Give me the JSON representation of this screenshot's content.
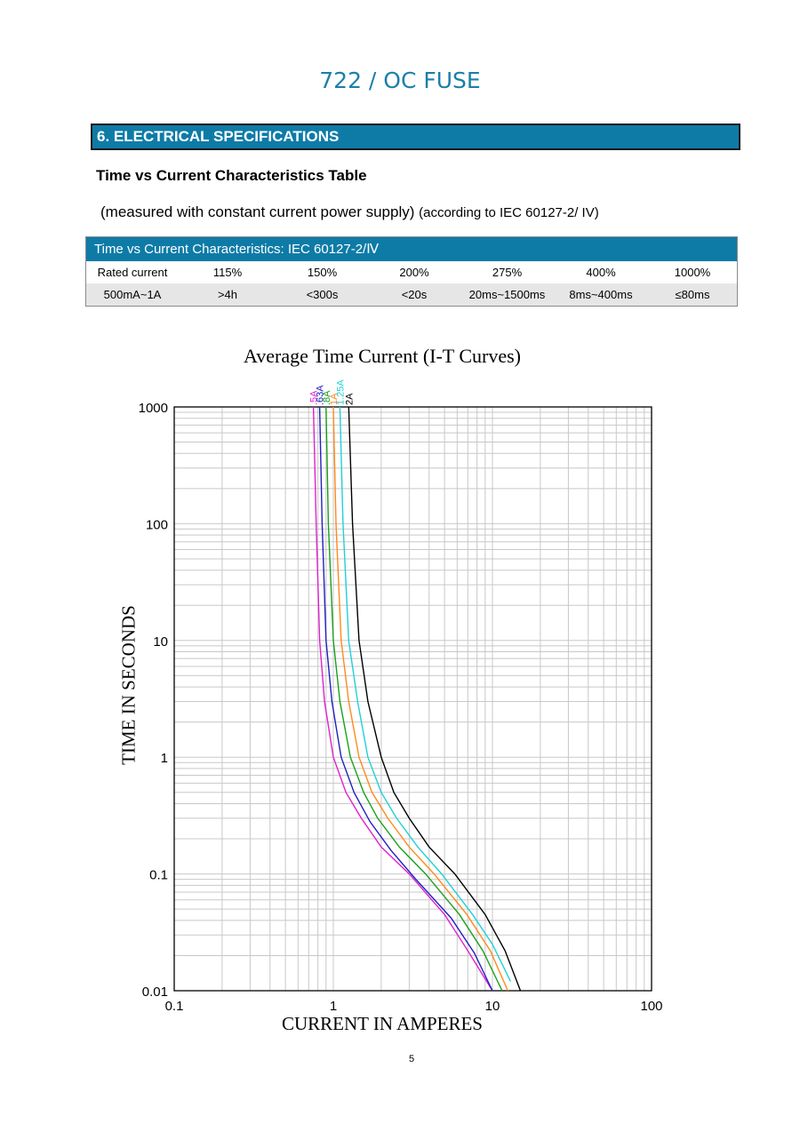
{
  "document": {
    "title": "722 / OC FUSE",
    "section_heading": "6. ELECTRICAL SPECIFICATIONS",
    "sub_heading": "Time vs Current Characteristics Table",
    "measure_note_main": "(measured with constant current power supply)",
    "measure_note_small": "(according to IEC 60127-2/ IV)",
    "page_number": "5"
  },
  "spec_table": {
    "header": "Time vs Current Characteristics: IEC 60127-2/Ⅳ",
    "rows": [
      [
        "Rated current",
        "115%",
        "150%",
        "200%",
        "275%",
        "400%",
        "1000%"
      ],
      [
        "500mA~1A",
        ">4h",
        "<300s",
        "<20s",
        "20ms~1500ms",
        "8ms~400ms",
        "≤80ms"
      ]
    ]
  },
  "chart_data": {
    "type": "line",
    "title": "Average Time Current (I-T Curves)",
    "xlabel": "CURRENT IN AMPERES",
    "ylabel": "TIME IN SECONDS",
    "xscale": "log",
    "yscale": "log",
    "xlim": [
      0.1,
      100
    ],
    "ylim": [
      0.01,
      1000
    ],
    "x_ticks": [
      "0.1",
      "1",
      "10",
      "100"
    ],
    "y_ticks": [
      "0.01",
      "0.1",
      "1",
      "10",
      "100",
      "1000"
    ],
    "grid": true,
    "legend": "curve labels at top of each curve",
    "series": [
      {
        "name": ".5A",
        "color": "#e020d0",
        "points": [
          [
            0.75,
            1000
          ],
          [
            0.78,
            100
          ],
          [
            0.82,
            10
          ],
          [
            0.88,
            3
          ],
          [
            1.0,
            1
          ],
          [
            1.2,
            0.5
          ],
          [
            1.5,
            0.3
          ],
          [
            2.0,
            0.17
          ],
          [
            3.0,
            0.1
          ],
          [
            5.0,
            0.045
          ],
          [
            7.0,
            0.022
          ],
          [
            10.0,
            0.01
          ]
        ]
      },
      {
        "name": ".63A",
        "color": "#2020c0",
        "points": [
          [
            0.82,
            1000
          ],
          [
            0.85,
            100
          ],
          [
            0.9,
            10
          ],
          [
            0.98,
            3
          ],
          [
            1.12,
            1
          ],
          [
            1.35,
            0.5
          ],
          [
            1.7,
            0.28
          ],
          [
            2.3,
            0.16
          ],
          [
            3.3,
            0.09
          ],
          [
            5.5,
            0.042
          ],
          [
            7.7,
            0.021
          ],
          [
            10.0,
            0.01
          ]
        ]
      },
      {
        "name": ".8A",
        "color": "#1aa01a",
        "points": [
          [
            0.9,
            1000
          ],
          [
            0.93,
            100
          ],
          [
            1.0,
            10
          ],
          [
            1.1,
            3
          ],
          [
            1.28,
            1
          ],
          [
            1.55,
            0.5
          ],
          [
            1.9,
            0.3
          ],
          [
            2.6,
            0.17
          ],
          [
            3.8,
            0.1
          ],
          [
            6.2,
            0.045
          ],
          [
            8.7,
            0.022
          ],
          [
            11.5,
            0.01
          ]
        ]
      },
      {
        "name": "1A",
        "color": "#ff8a1a",
        "points": [
          [
            1.0,
            1000
          ],
          [
            1.04,
            100
          ],
          [
            1.12,
            10
          ],
          [
            1.25,
            3
          ],
          [
            1.45,
            1
          ],
          [
            1.75,
            0.5
          ],
          [
            2.2,
            0.3
          ],
          [
            3.0,
            0.17
          ],
          [
            4.3,
            0.1
          ],
          [
            6.9,
            0.045
          ],
          [
            9.7,
            0.022
          ],
          [
            12.5,
            0.01
          ]
        ]
      },
      {
        "name": "1.25A",
        "color": "#20d0d8",
        "points": [
          [
            1.1,
            1000
          ],
          [
            1.15,
            100
          ],
          [
            1.25,
            10
          ],
          [
            1.42,
            3
          ],
          [
            1.65,
            1
          ],
          [
            2.0,
            0.5
          ],
          [
            2.5,
            0.3
          ],
          [
            3.4,
            0.17
          ],
          [
            4.8,
            0.1
          ],
          [
            7.5,
            0.045
          ],
          [
            10.0,
            0.025
          ],
          [
            13.0,
            0.012
          ]
        ]
      },
      {
        "name": "2A",
        "color": "#000000",
        "points": [
          [
            1.25,
            1000
          ],
          [
            1.32,
            100
          ],
          [
            1.45,
            10
          ],
          [
            1.65,
            3
          ],
          [
            2.0,
            1
          ],
          [
            2.4,
            0.5
          ],
          [
            3.0,
            0.3
          ],
          [
            4.0,
            0.17
          ],
          [
            5.8,
            0.1
          ],
          [
            9.0,
            0.045
          ],
          [
            12.0,
            0.022
          ],
          [
            15.0,
            0.01
          ]
        ]
      }
    ],
    "curve_label_texts": [
      ".5A",
      ".63A",
      ".8A",
      "1A",
      "1.25A",
      "2A"
    ]
  }
}
